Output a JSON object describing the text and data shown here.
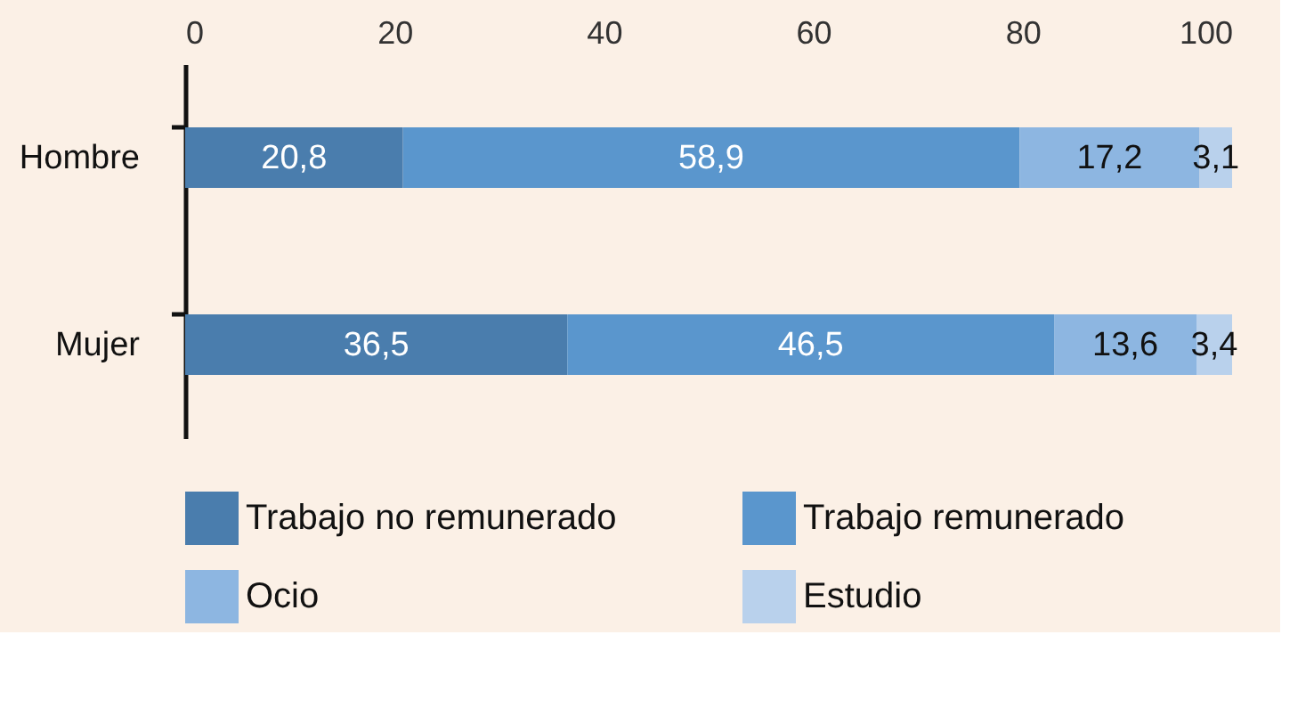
{
  "chart_data": {
    "type": "bar",
    "orientation": "horizontal",
    "stacked": true,
    "categories": [
      "Hombre",
      "Mujer"
    ],
    "series": [
      {
        "name": "Trabajo no remunerado",
        "color": "#4a7dad",
        "values": [
          20.8,
          36.5
        ],
        "value_labels": [
          "20,8",
          "36,5"
        ]
      },
      {
        "name": "Trabajo remunerado",
        "color": "#5a96cd",
        "values": [
          58.9,
          46.5
        ],
        "value_labels": [
          "58,9",
          "46,5"
        ]
      },
      {
        "name": "Ocio",
        "color": "#8db6e1",
        "values": [
          17.2,
          13.6
        ],
        "value_labels": [
          "17,2",
          "13,6"
        ]
      },
      {
        "name": "Estudio",
        "color": "#b9d1ec",
        "values": [
          3.1,
          3.4
        ],
        "value_labels": [
          "3,1",
          "3,4"
        ]
      }
    ],
    "xlim": [
      0,
      100
    ],
    "xticks": [
      0,
      20,
      40,
      60,
      80,
      100
    ],
    "grid": false,
    "legend": "bottom"
  }
}
